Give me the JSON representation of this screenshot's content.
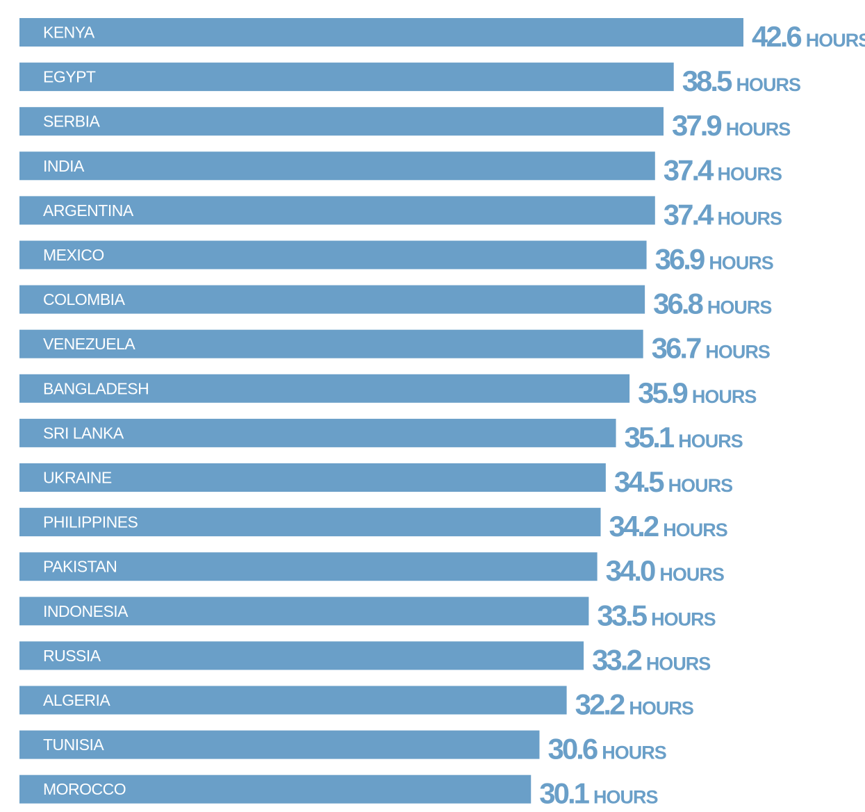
{
  "chart_data": {
    "type": "bar",
    "orientation": "horizontal",
    "unit": "HOURS",
    "categories": [
      "KENYA",
      "EGYPT",
      "SERBIA",
      "INDIA",
      "ARGENTINA",
      "MEXICO",
      "COLOMBIA",
      "VENEZUELA",
      "BANGLADESH",
      "SRI LANKA",
      "UKRAINE",
      "PHILIPPINES",
      "PAKISTAN",
      "INDONESIA",
      "RUSSIA",
      "ALGERIA",
      "TUNISIA",
      "MOROCCO"
    ],
    "values": [
      42.6,
      38.5,
      37.9,
      37.4,
      37.4,
      36.9,
      36.8,
      36.7,
      35.9,
      35.1,
      34.5,
      34.2,
      34.0,
      33.5,
      33.2,
      32.2,
      30.6,
      30.1
    ],
    "value_labels": [
      "42.6",
      "38.5",
      "37.9",
      "37.4",
      "37.4",
      "36.9",
      "36.8",
      "36.7",
      "35.9",
      "35.1",
      "34.5",
      "34.2",
      "34.0",
      "33.5",
      "33.2",
      "32.2",
      "30.6",
      "30.1"
    ],
    "title": "",
    "xlabel": "",
    "ylabel": "",
    "grid": false,
    "legend": "none",
    "colors": {
      "bar": "#6a9fc8",
      "label_text": "#ffffff",
      "value_text": "#6a9fc8"
    }
  }
}
